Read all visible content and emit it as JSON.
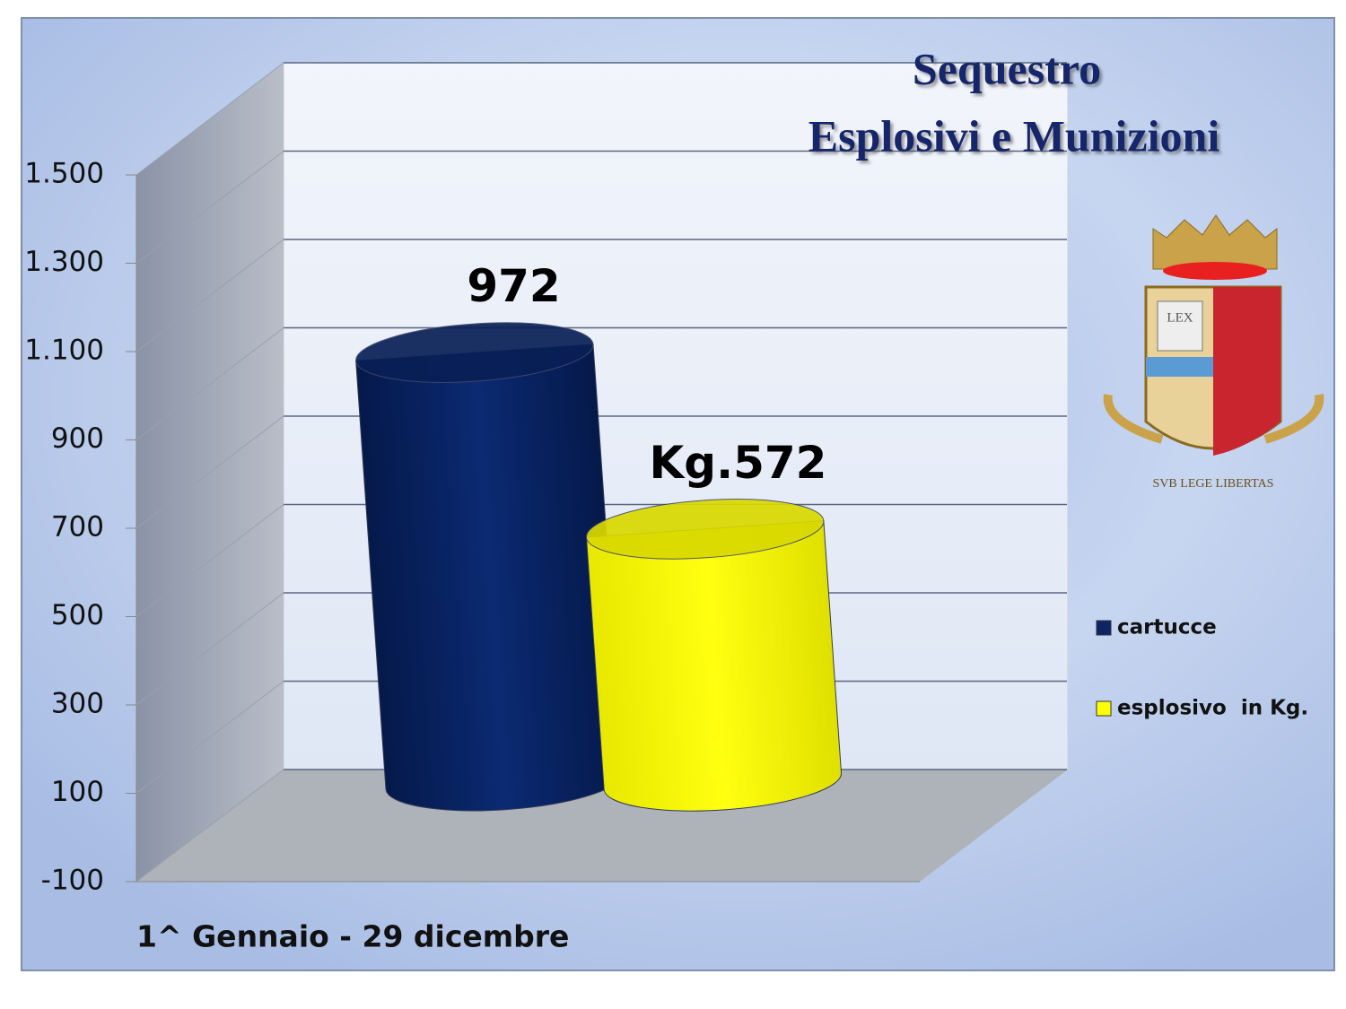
{
  "chart_data": {
    "type": "bar3d",
    "title": "Sequestro",
    "subtitle": "Esplosivi e Munizioni",
    "x_label": "1^ Gennaio  - 29 dicembre",
    "series": [
      {
        "name": "cartucce",
        "color": "#0b2565",
        "values": [
          972
        ],
        "value_labels": [
          "972"
        ]
      },
      {
        "name": "esplosivo  in Kg.",
        "color": "#ffff00",
        "values": [
          572
        ],
        "value_labels": [
          "Kg.572"
        ]
      }
    ],
    "ylim": [
      -100,
      1500
    ],
    "yticks": [
      -100,
      100,
      300,
      500,
      700,
      900,
      {
        "value": 1100,
        "label": "1.100"
      },
      {
        "value": 1300,
        "label": "1.300"
      },
      {
        "value": 1500,
        "label": "1.500"
      }
    ],
    "grid": true,
    "legend": "right",
    "emblem": {
      "book": "LEX",
      "motto": "SVB LEGE LIBERTAS"
    }
  }
}
